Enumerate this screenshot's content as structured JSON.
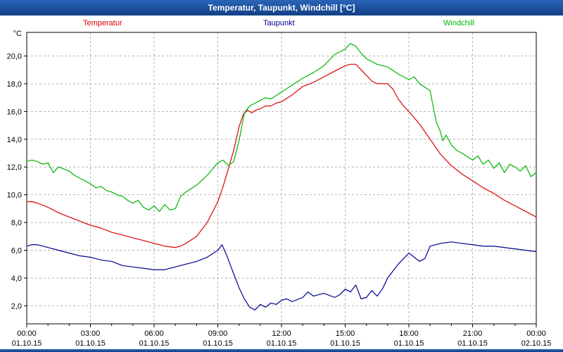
{
  "title_bar": {
    "title": "Temperatur, Taupunkt, Windchill [°C]"
  },
  "legend": {
    "temperatur": "Temperatur",
    "taupunkt": "Taupunkt",
    "windchill": "Windchill"
  },
  "colors": {
    "title_bar": "#17519e",
    "temperatur": "#dd0000",
    "taupunkt": "#000090",
    "windchill": "#00b400",
    "grid": "#b2b2b2"
  },
  "chart_data": {
    "type": "line",
    "title": "Temperatur, Taupunkt, Windchill [°C]",
    "xlabel": "",
    "ylabel": "°C",
    "unit_label": "°C",
    "grid": "dashed",
    "legend_position": "top",
    "xlim": [
      0,
      24
    ],
    "ylim": [
      0.7,
      21.7
    ],
    "y_ticks": [
      {
        "value": 2,
        "label": "2,0"
      },
      {
        "value": 4,
        "label": "4,0"
      },
      {
        "value": 6,
        "label": "6,0"
      },
      {
        "value": 8,
        "label": "8,0"
      },
      {
        "value": 10,
        "label": "10,0"
      },
      {
        "value": 12,
        "label": "12,0"
      },
      {
        "value": 14,
        "label": "14,0"
      },
      {
        "value": 16,
        "label": "16,0"
      },
      {
        "value": 18,
        "label": "18,0"
      },
      {
        "value": 20,
        "label": "20,0"
      }
    ],
    "x_ticks": [
      {
        "hour": 0,
        "time": "00:00",
        "date": "01.10.15"
      },
      {
        "hour": 3,
        "time": "03:00",
        "date": "01.10.15"
      },
      {
        "hour": 6,
        "time": "06:00",
        "date": "01.10.15"
      },
      {
        "hour": 9,
        "time": "09:00",
        "date": "01.10.15"
      },
      {
        "hour": 12,
        "time": "12:00",
        "date": "01.10.15"
      },
      {
        "hour": 15,
        "time": "15:00",
        "date": "01.10.15"
      },
      {
        "hour": 18,
        "time": "18:00",
        "date": "01.10.15"
      },
      {
        "hour": 21,
        "time": "21:00",
        "date": "01.10.15"
      },
      {
        "hour": 24,
        "time": "00:00",
        "date": "02.10.15"
      }
    ],
    "series": [
      {
        "name": "Temperatur",
        "color": "#dd0000",
        "points": [
          [
            0,
            9.5
          ],
          [
            0.25,
            9.5
          ],
          [
            0.5,
            9.4
          ],
          [
            1,
            9.1
          ],
          [
            1.5,
            8.7
          ],
          [
            2,
            8.4
          ],
          [
            2.5,
            8.1
          ],
          [
            3,
            7.8
          ],
          [
            3.5,
            7.6
          ],
          [
            4,
            7.3
          ],
          [
            4.5,
            7.1
          ],
          [
            5,
            6.9
          ],
          [
            5.5,
            6.7
          ],
          [
            6,
            6.5
          ],
          [
            6.5,
            6.3
          ],
          [
            7,
            6.2
          ],
          [
            7.25,
            6.3
          ],
          [
            7.5,
            6.5
          ],
          [
            8,
            7.0
          ],
          [
            8.5,
            8.0
          ],
          [
            9,
            9.5
          ],
          [
            9.25,
            10.6
          ],
          [
            9.5,
            11.9
          ],
          [
            9.75,
            13.2
          ],
          [
            10,
            14.9
          ],
          [
            10.2,
            15.8
          ],
          [
            10.4,
            16.1
          ],
          [
            10.6,
            15.9
          ],
          [
            10.8,
            16.1
          ],
          [
            11,
            16.2
          ],
          [
            11.25,
            16.4
          ],
          [
            11.5,
            16.4
          ],
          [
            11.75,
            16.6
          ],
          [
            12,
            16.7
          ],
          [
            12.5,
            17.2
          ],
          [
            13,
            17.8
          ],
          [
            13.5,
            18.1
          ],
          [
            14,
            18.5
          ],
          [
            14.5,
            18.9
          ],
          [
            14.75,
            19.1
          ],
          [
            15,
            19.3
          ],
          [
            15.25,
            19.4
          ],
          [
            15.5,
            19.4
          ],
          [
            15.75,
            19.0
          ],
          [
            16,
            18.6
          ],
          [
            16.25,
            18.2
          ],
          [
            16.5,
            18.0
          ],
          [
            17,
            18.0
          ],
          [
            17.25,
            17.6
          ],
          [
            17.5,
            16.9
          ],
          [
            17.75,
            16.4
          ],
          [
            18,
            16.0
          ],
          [
            18.5,
            15.1
          ],
          [
            19,
            14.0
          ],
          [
            19.5,
            12.9
          ],
          [
            20,
            12.1
          ],
          [
            20.5,
            11.5
          ],
          [
            21,
            11.0
          ],
          [
            21.5,
            10.5
          ],
          [
            22,
            10.1
          ],
          [
            22.5,
            9.6
          ],
          [
            23,
            9.2
          ],
          [
            23.5,
            8.8
          ],
          [
            24,
            8.4
          ]
        ]
      },
      {
        "name": "Taupunkt",
        "color": "#000090",
        "points": [
          [
            0,
            6.3
          ],
          [
            0.25,
            6.4
          ],
          [
            0.5,
            6.4
          ],
          [
            0.75,
            6.3
          ],
          [
            1,
            6.2
          ],
          [
            1.5,
            6.0
          ],
          [
            2,
            5.8
          ],
          [
            2.5,
            5.6
          ],
          [
            3,
            5.5
          ],
          [
            3.5,
            5.3
          ],
          [
            4,
            5.2
          ],
          [
            4.5,
            4.9
          ],
          [
            5,
            4.8
          ],
          [
            5.5,
            4.7
          ],
          [
            6,
            4.6
          ],
          [
            6.5,
            4.6
          ],
          [
            7,
            4.8
          ],
          [
            7.5,
            5.0
          ],
          [
            8,
            5.2
          ],
          [
            8.5,
            5.5
          ],
          [
            9,
            6.0
          ],
          [
            9.2,
            6.4
          ],
          [
            9.4,
            5.7
          ],
          [
            9.6,
            4.9
          ],
          [
            9.8,
            4.1
          ],
          [
            10,
            3.3
          ],
          [
            10.25,
            2.5
          ],
          [
            10.5,
            1.9
          ],
          [
            10.75,
            1.7
          ],
          [
            11,
            2.1
          ],
          [
            11.25,
            1.9
          ],
          [
            11.5,
            2.2
          ],
          [
            11.75,
            2.1
          ],
          [
            12,
            2.4
          ],
          [
            12.25,
            2.5
          ],
          [
            12.5,
            2.3
          ],
          [
            13,
            2.6
          ],
          [
            13.25,
            3.0
          ],
          [
            13.5,
            2.7
          ],
          [
            14,
            2.9
          ],
          [
            14.5,
            2.6
          ],
          [
            14.75,
            2.8
          ],
          [
            15,
            3.2
          ],
          [
            15.25,
            3.0
          ],
          [
            15.5,
            3.5
          ],
          [
            15.75,
            2.5
          ],
          [
            16,
            2.6
          ],
          [
            16.25,
            3.1
          ],
          [
            16.5,
            2.7
          ],
          [
            16.75,
            3.2
          ],
          [
            17,
            4.0
          ],
          [
            17.5,
            5.0
          ],
          [
            18,
            5.8
          ],
          [
            18.25,
            5.5
          ],
          [
            18.5,
            5.2
          ],
          [
            18.75,
            5.4
          ],
          [
            19,
            6.3
          ],
          [
            19.5,
            6.5
          ],
          [
            20,
            6.6
          ],
          [
            20.5,
            6.5
          ],
          [
            21,
            6.4
          ],
          [
            21.5,
            6.3
          ],
          [
            22,
            6.3
          ],
          [
            22.5,
            6.2
          ],
          [
            23,
            6.1
          ],
          [
            23.5,
            6.0
          ],
          [
            24,
            5.9
          ]
        ]
      },
      {
        "name": "Windchill",
        "color": "#00b400",
        "points": [
          [
            0,
            12.4
          ],
          [
            0.25,
            12.5
          ],
          [
            0.5,
            12.4
          ],
          [
            0.75,
            12.2
          ],
          [
            1,
            12.3
          ],
          [
            1.25,
            11.6
          ],
          [
            1.5,
            12.0
          ],
          [
            2,
            11.7
          ],
          [
            2.25,
            11.4
          ],
          [
            2.5,
            11.2
          ],
          [
            3,
            10.8
          ],
          [
            3.25,
            10.5
          ],
          [
            3.5,
            10.6
          ],
          [
            3.75,
            10.3
          ],
          [
            4,
            10.2
          ],
          [
            4.25,
            10.0
          ],
          [
            4.5,
            9.9
          ],
          [
            4.75,
            9.6
          ],
          [
            5,
            9.4
          ],
          [
            5.25,
            9.6
          ],
          [
            5.5,
            9.1
          ],
          [
            5.75,
            8.9
          ],
          [
            6,
            9.2
          ],
          [
            6.25,
            8.8
          ],
          [
            6.5,
            9.3
          ],
          [
            6.75,
            8.9
          ],
          [
            7,
            9.0
          ],
          [
            7.25,
            9.9
          ],
          [
            7.5,
            10.2
          ],
          [
            8,
            10.7
          ],
          [
            8.5,
            11.4
          ],
          [
            9,
            12.3
          ],
          [
            9.25,
            12.5
          ],
          [
            9.5,
            12.1
          ],
          [
            9.75,
            12.4
          ],
          [
            10,
            13.9
          ],
          [
            10.25,
            15.9
          ],
          [
            10.5,
            16.4
          ],
          [
            11,
            16.8
          ],
          [
            11.25,
            17.0
          ],
          [
            11.5,
            16.9
          ],
          [
            12,
            17.4
          ],
          [
            12.5,
            17.9
          ],
          [
            13,
            18.4
          ],
          [
            13.5,
            18.8
          ],
          [
            14,
            19.3
          ],
          [
            14.5,
            20.1
          ],
          [
            15,
            20.5
          ],
          [
            15.25,
            20.9
          ],
          [
            15.5,
            20.7
          ],
          [
            15.75,
            20.2
          ],
          [
            16,
            19.8
          ],
          [
            16.5,
            19.4
          ],
          [
            17,
            19.2
          ],
          [
            17.5,
            18.7
          ],
          [
            18,
            18.3
          ],
          [
            18.25,
            18.5
          ],
          [
            18.5,
            18.0
          ],
          [
            19,
            17.5
          ],
          [
            19.15,
            16.3
          ],
          [
            19.3,
            15.2
          ],
          [
            19.45,
            14.7
          ],
          [
            19.6,
            13.9
          ],
          [
            19.75,
            14.3
          ],
          [
            20,
            13.6
          ],
          [
            20.25,
            13.2
          ],
          [
            20.5,
            13.0
          ],
          [
            21,
            12.5
          ],
          [
            21.25,
            12.8
          ],
          [
            21.5,
            12.2
          ],
          [
            21.75,
            12.5
          ],
          [
            22,
            11.9
          ],
          [
            22.25,
            12.3
          ],
          [
            22.5,
            11.6
          ],
          [
            22.75,
            12.2
          ],
          [
            23,
            12.0
          ],
          [
            23.25,
            11.7
          ],
          [
            23.5,
            12.1
          ],
          [
            23.75,
            11.3
          ],
          [
            24,
            11.6
          ]
        ]
      }
    ]
  }
}
